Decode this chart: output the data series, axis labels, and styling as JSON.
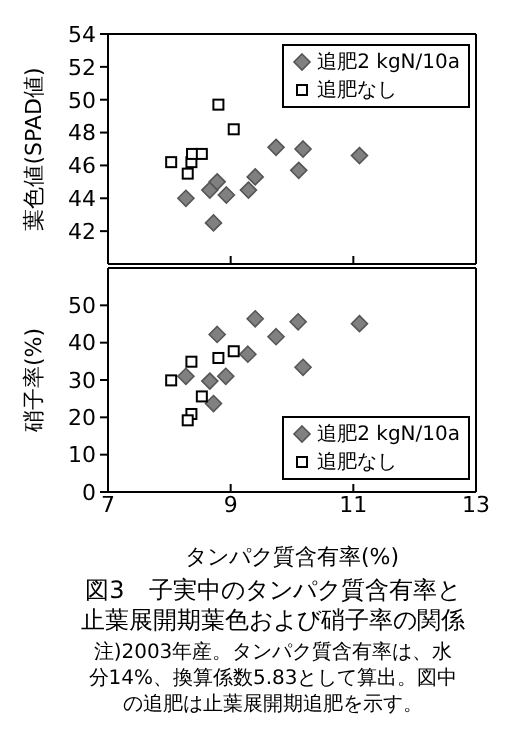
{
  "chart_data": [
    {
      "type": "scatter",
      "ylabel": "葉色値(SPAD値)",
      "xlim": [
        7,
        13
      ],
      "xticks": [
        7,
        9,
        11,
        13
      ],
      "ylim": [
        40,
        54
      ],
      "yticks": [
        42,
        44,
        46,
        48,
        50,
        52,
        54
      ],
      "tick_labels": "y",
      "legend": "top right",
      "series": [
        {
          "name": "追肥2 kgN/10a",
          "color": "#808080",
          "marker": "diamond",
          "x": [
            8.27,
            8.72,
            8.66,
            8.78,
            8.93,
            9.29,
            9.4,
            9.74,
            10.11,
            10.18,
            11.1
          ],
          "values": [
            44.0,
            42.5,
            44.5,
            45.0,
            44.2,
            44.5,
            45.3,
            47.1,
            45.7,
            47.0,
            46.6
          ]
        },
        {
          "name": "追肥なし",
          "color": "#000000",
          "marker": "square",
          "x": [
            8.03,
            8.3,
            8.36,
            8.37,
            8.53,
            8.8,
            9.05
          ],
          "values": [
            46.2,
            45.5,
            46.2,
            46.7,
            46.7,
            49.7,
            48.2
          ]
        }
      ]
    },
    {
      "type": "scatter",
      "ylabel": "硝子率(%)",
      "xlabel": "タンパク質含有率(%)",
      "xlim": [
        7,
        13
      ],
      "xticks": [
        7,
        9,
        11,
        13
      ],
      "ylim": [
        0,
        60
      ],
      "yticks": [
        0,
        10,
        20,
        30,
        40,
        50
      ],
      "legend": "bottom right",
      "title": "図3　子実中のタンパク質含有率と止葉展開期葉色および硝子率の関係",
      "annotations": [
        "注)2003年産。タンパク質含有率は、水分14%、換算係数5.83として算出。図中の追肥は止葉展開期追肥を示す。"
      ],
      "series": [
        {
          "name": "追肥2 kgN/10a",
          "color": "#808080",
          "marker": "diamond",
          "x": [
            9.4,
            10.1,
            11.1,
            8.78,
            9.74,
            9.28,
            10.18,
            8.27,
            8.66,
            8.92,
            8.72
          ],
          "values": [
            46.4,
            45.6,
            45.1,
            42.2,
            41.6,
            36.9,
            33.4,
            31.0,
            29.7,
            31.0,
            23.7
          ]
        },
        {
          "name": "追肥なし",
          "color": "#000000",
          "marker": "square",
          "x": [
            8.03,
            8.36,
            8.8,
            9.05,
            8.53,
            8.36,
            8.3
          ],
          "values": [
            29.9,
            34.9,
            35.9,
            37.7,
            25.6,
            20.9,
            19.2
          ]
        }
      ]
    }
  ]
}
